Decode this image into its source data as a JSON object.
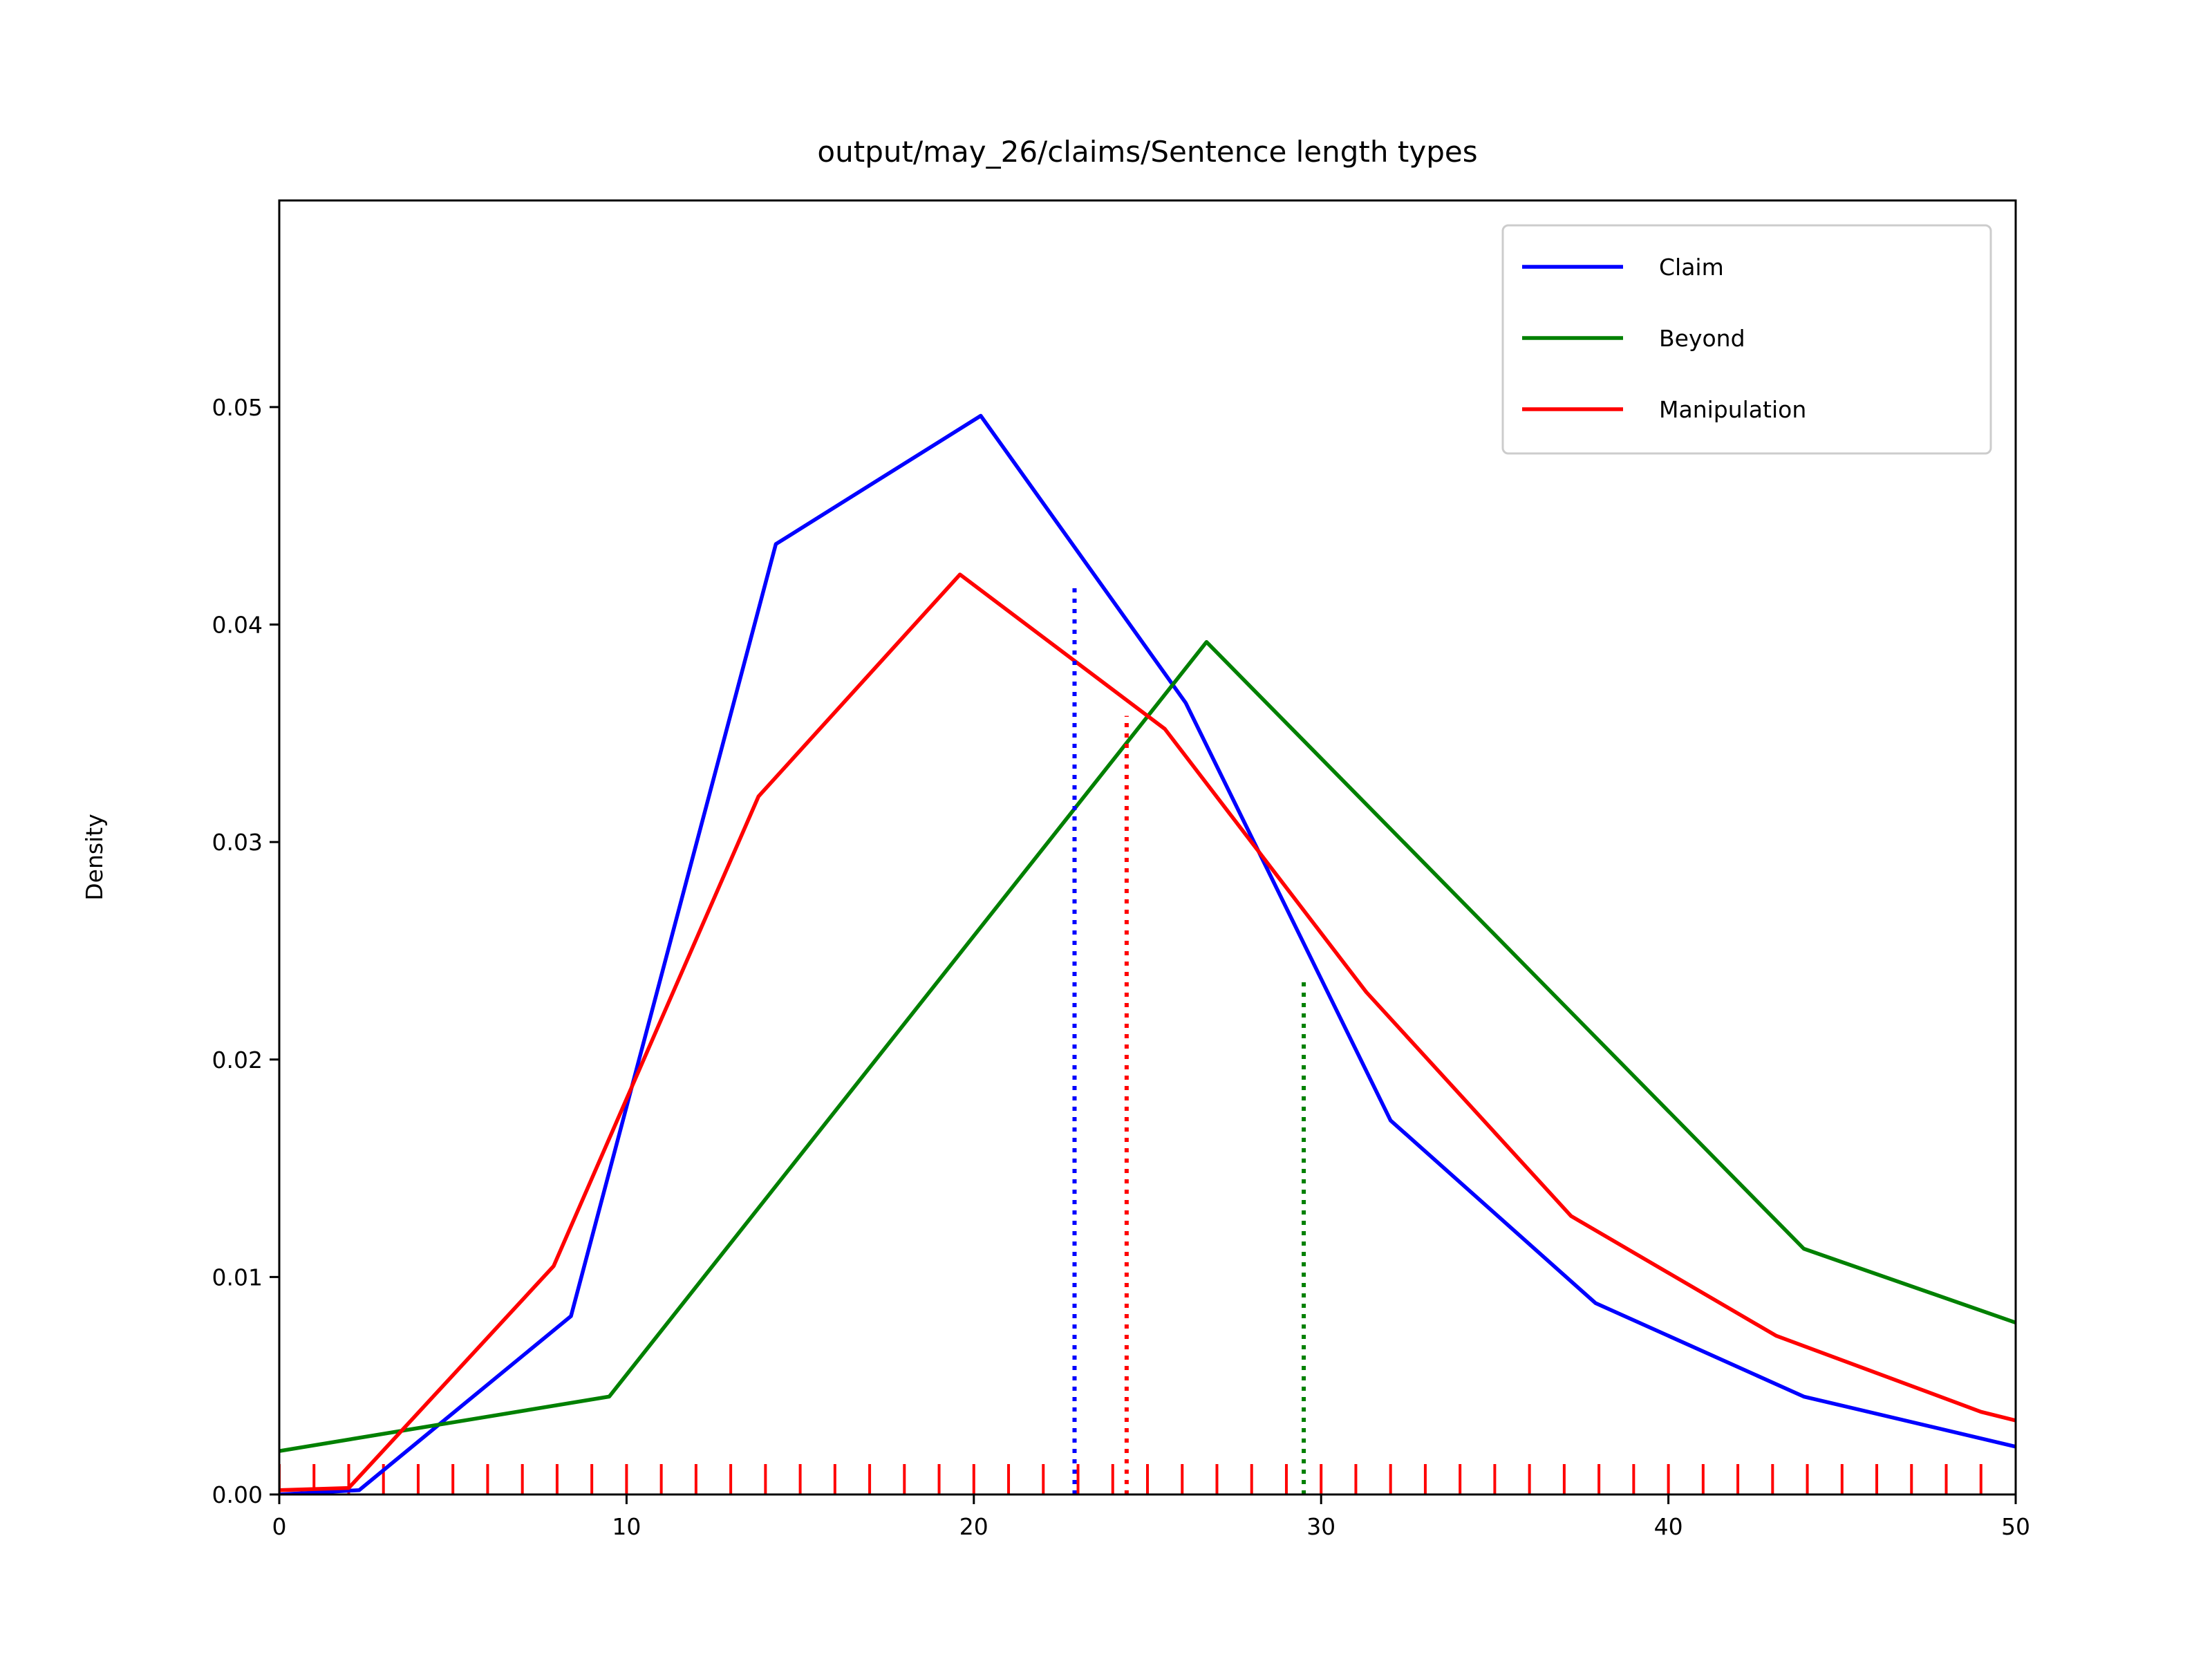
{
  "chart_data": {
    "type": "line",
    "title": "output/may_26/claims/Sentence length types",
    "xlabel": "",
    "ylabel": "Density",
    "xlim": [
      0,
      50
    ],
    "ylim": [
      0,
      0.0595
    ],
    "xticks": [
      0,
      10,
      20,
      30,
      40,
      50
    ],
    "xtick_labels": [
      "0",
      "10",
      "20",
      "30",
      "40",
      "50"
    ],
    "yticks": [
      0,
      0.01,
      0.02,
      0.03,
      0.04,
      0.05
    ],
    "ytick_labels": [
      "0.00",
      "0.01",
      "0.02",
      "0.03",
      "0.04",
      "0.05"
    ],
    "grid": false,
    "legend_position": "upper right",
    "series": [
      {
        "name": "Claim",
        "color": "#0000ff",
        "x": [
          0.0,
          2.3,
          8.4,
          14.3,
          20.2,
          26.1,
          32.0,
          37.9,
          43.9,
          50.0
        ],
        "y": [
          0.0,
          0.0002,
          0.0082,
          0.0437,
          0.0496,
          0.0364,
          0.0172,
          0.0088,
          0.0045,
          0.0022
        ],
        "median": 22.9,
        "median_y": 0.0418
      },
      {
        "name": "Beyond",
        "color": "#008000",
        "x": [
          0.0,
          9.5,
          26.7,
          43.9,
          50.0
        ],
        "y": [
          0.002,
          0.0045,
          0.0392,
          0.0113,
          0.0079
        ],
        "median": 29.5,
        "median_y": 0.0237
      },
      {
        "name": "Manipulation",
        "color": "#ff0000",
        "x": [
          0.0,
          2.0,
          7.9,
          13.8,
          19.6,
          25.5,
          31.3,
          37.2,
          43.1,
          49.0,
          50.0
        ],
        "y": [
          0.0002,
          0.0003,
          0.0105,
          0.0321,
          0.0423,
          0.0352,
          0.0231,
          0.0128,
          0.0073,
          0.0038,
          0.0034
        ],
        "median": 24.4,
        "median_y": 0.0358
      }
    ],
    "rug": {
      "color": "#ff0000",
      "x": [
        0,
        1,
        2,
        3,
        4,
        5,
        6,
        7,
        8,
        9,
        10,
        11,
        12,
        13,
        14,
        15,
        16,
        17,
        18,
        19,
        20,
        21,
        22,
        23,
        24,
        25,
        26,
        27,
        28,
        29,
        30,
        31,
        32,
        33,
        34,
        35,
        36,
        37,
        38,
        39,
        40,
        41,
        42,
        43,
        44,
        45,
        46,
        47,
        48,
        49
      ]
    }
  }
}
